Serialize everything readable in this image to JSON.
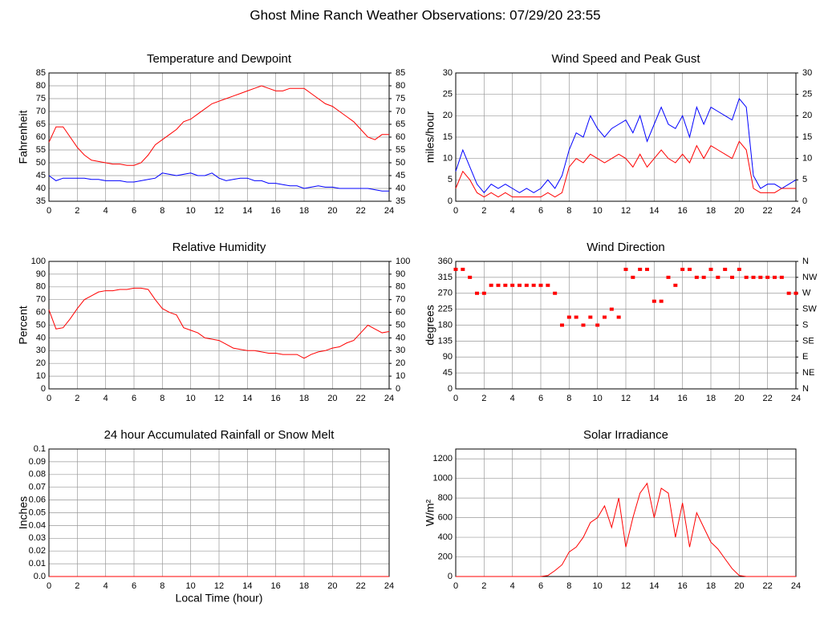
{
  "title": "Ghost Mine Ranch Weather Observations: 07/29/20 23:55",
  "chart_data": [
    {
      "type": "line",
      "title": "Temperature and Dewpoint",
      "ylabel": "Fahrenheit",
      "grid": true,
      "x": [
        0,
        0.5,
        1,
        1.5,
        2,
        2.5,
        3,
        3.5,
        4,
        4.5,
        5,
        5.5,
        6,
        6.5,
        7,
        7.5,
        8,
        8.5,
        9,
        9.5,
        10,
        10.5,
        11,
        11.5,
        12,
        12.5,
        13,
        13.5,
        14,
        14.5,
        15,
        15.5,
        16,
        16.5,
        17,
        17.5,
        18,
        18.5,
        19,
        19.5,
        20,
        20.5,
        21,
        21.5,
        22,
        22.5,
        23,
        23.5,
        24
      ],
      "series": [
        {
          "color": "#ff0000",
          "values": [
            58,
            64,
            64,
            60,
            56,
            53,
            51,
            50.5,
            50,
            49.5,
            49.5,
            49,
            49,
            50,
            53,
            57,
            59,
            61,
            63,
            66,
            67,
            69,
            71,
            73,
            74,
            75,
            76,
            77,
            78,
            79,
            80,
            79,
            78,
            78,
            79,
            79,
            79,
            77,
            75,
            73,
            72,
            70,
            68,
            66,
            63,
            60,
            59,
            61,
            61
          ]
        },
        {
          "color": "#0000ff",
          "values": [
            45,
            43,
            44,
            44,
            44,
            44,
            43.5,
            43.5,
            43,
            43,
            43,
            42.5,
            42.5,
            43,
            43.5,
            44,
            46,
            45.5,
            45,
            45.5,
            46,
            45,
            45,
            46,
            44,
            43,
            43.5,
            44,
            44,
            43,
            43,
            42,
            42,
            41.5,
            41,
            41,
            40,
            40.5,
            41,
            40.5,
            40.5,
            40,
            40,
            40,
            40,
            40,
            39.5,
            39,
            39
          ]
        }
      ],
      "xlim": [
        0,
        24
      ],
      "xticks": [
        0,
        2,
        4,
        6,
        8,
        10,
        12,
        14,
        16,
        18,
        20,
        22,
        24
      ],
      "ylim": [
        35,
        85
      ],
      "yticks": [
        35,
        40,
        45,
        50,
        55,
        60,
        65,
        70,
        75,
        80,
        85
      ],
      "y2lim": [
        35,
        85
      ],
      "y2ticks": [
        35,
        40,
        45,
        50,
        55,
        60,
        65,
        70,
        75,
        80,
        85
      ]
    },
    {
      "type": "line",
      "title": "Wind Speed and Peak Gust",
      "ylabel": "miles/hour",
      "grid": true,
      "x": [
        0,
        0.5,
        1,
        1.5,
        2,
        2.5,
        3,
        3.5,
        4,
        4.5,
        5,
        5.5,
        6,
        6.5,
        7,
        7.5,
        8,
        8.5,
        9,
        9.5,
        10,
        10.5,
        11,
        11.5,
        12,
        12.5,
        13,
        13.5,
        14,
        14.5,
        15,
        15.5,
        16,
        16.5,
        17,
        17.5,
        18,
        18.5,
        19,
        19.5,
        20,
        20.5,
        21,
        21.5,
        22,
        22.5,
        23,
        23.5,
        24
      ],
      "series": [
        {
          "color": "#0000ff",
          "values": [
            7,
            12,
            8,
            4,
            2,
            4,
            3,
            4,
            3,
            2,
            3,
            2,
            3,
            5,
            3,
            6,
            12,
            16,
            15,
            20,
            17,
            15,
            17,
            18,
            19,
            16,
            20,
            14,
            18,
            22,
            18,
            17,
            20,
            15,
            22,
            18,
            22,
            21,
            20,
            19,
            24,
            22,
            6,
            3,
            4,
            4,
            3,
            4,
            5
          ]
        },
        {
          "color": "#ff0000",
          "values": [
            3,
            7,
            5,
            2,
            1,
            2,
            1,
            2,
            1,
            1,
            1,
            1,
            1,
            2,
            1,
            2,
            8,
            10,
            9,
            11,
            10,
            9,
            10,
            11,
            10,
            8,
            11,
            8,
            10,
            12,
            10,
            9,
            11,
            9,
            13,
            10,
            13,
            12,
            11,
            10,
            14,
            12,
            3,
            2,
            2,
            2,
            3,
            3,
            3
          ]
        }
      ],
      "xlim": [
        0,
        24
      ],
      "xticks": [
        0,
        2,
        4,
        6,
        8,
        10,
        12,
        14,
        16,
        18,
        20,
        22,
        24
      ],
      "ylim": [
        0,
        30
      ],
      "yticks": [
        0,
        5,
        10,
        15,
        20,
        25,
        30
      ],
      "y2lim": [
        0,
        30
      ],
      "y2ticks": [
        0,
        5,
        10,
        15,
        20,
        25,
        30
      ]
    },
    {
      "type": "line",
      "title": "Relative Humidity",
      "ylabel": "Percent",
      "grid": true,
      "x": [
        0,
        0.5,
        1,
        1.5,
        2,
        2.5,
        3,
        3.5,
        4,
        4.5,
        5,
        5.5,
        6,
        6.5,
        7,
        7.5,
        8,
        8.5,
        9,
        9.5,
        10,
        10.5,
        11,
        11.5,
        12,
        12.5,
        13,
        13.5,
        14,
        14.5,
        15,
        15.5,
        16,
        16.5,
        17,
        17.5,
        18,
        18.5,
        19,
        19.5,
        20,
        20.5,
        21,
        21.5,
        22,
        22.5,
        23,
        23.5,
        24
      ],
      "series": [
        {
          "color": "#ff0000",
          "values": [
            62,
            47,
            48,
            55,
            63,
            70,
            73,
            76,
            77,
            77,
            78,
            78,
            79,
            79,
            78,
            70,
            63,
            60,
            58,
            48,
            46,
            44,
            40,
            39,
            38,
            35,
            32,
            31,
            30,
            30,
            29,
            28,
            28,
            27,
            27,
            27,
            24,
            27,
            29,
            30,
            32,
            33,
            36,
            38,
            44,
            50,
            47,
            44,
            45
          ]
        }
      ],
      "xlim": [
        0,
        24
      ],
      "xticks": [
        0,
        2,
        4,
        6,
        8,
        10,
        12,
        14,
        16,
        18,
        20,
        22,
        24
      ],
      "ylim": [
        0,
        100
      ],
      "yticks": [
        0,
        10,
        20,
        30,
        40,
        50,
        60,
        70,
        80,
        90,
        100
      ],
      "y2lim": [
        0,
        100
      ],
      "y2ticks": [
        0,
        10,
        20,
        30,
        40,
        50,
        60,
        70,
        80,
        90,
        100
      ]
    },
    {
      "type": "scatter",
      "title": "Wind Direction",
      "ylabel": "degrees",
      "grid": true,
      "x": [
        0,
        0.5,
        1,
        1.5,
        2,
        2.5,
        3,
        3.5,
        4,
        4.5,
        5,
        5.5,
        6,
        6.5,
        7,
        7.5,
        8,
        8.5,
        9,
        9.5,
        10,
        10.5,
        11,
        11.5,
        12,
        12.5,
        13,
        13.5,
        14,
        14.5,
        15,
        15.5,
        16,
        16.5,
        17,
        17.5,
        18,
        18.5,
        19,
        19.5,
        20,
        20.5,
        21,
        21.5,
        22,
        22.5,
        23,
        23.5,
        24
      ],
      "series": [
        {
          "color": "#ff0000",
          "values": [
            337.5,
            337.5,
            315,
            270,
            270,
            292.5,
            292.5,
            292.5,
            292.5,
            292.5,
            292.5,
            292.5,
            292.5,
            292.5,
            270,
            180,
            202.5,
            202.5,
            180,
            202.5,
            180,
            202.5,
            225,
            202.5,
            337.5,
            315,
            337.5,
            337.5,
            247.5,
            247.5,
            315,
            292.5,
            337.5,
            337.5,
            315,
            315,
            337.5,
            315,
            337.5,
            315,
            337.5,
            315,
            315,
            315,
            315,
            315,
            315,
            270,
            270
          ]
        }
      ],
      "xlim": [
        0,
        24
      ],
      "xticks": [
        0,
        2,
        4,
        6,
        8,
        10,
        12,
        14,
        16,
        18,
        20,
        22,
        24
      ],
      "ylim": [
        0,
        360
      ],
      "yticks": [
        0,
        45,
        90,
        135,
        180,
        225,
        270,
        315,
        360
      ],
      "y2lim": [
        0,
        360
      ],
      "y2ticks": [
        {
          "value": 0,
          "label": "N"
        },
        {
          "value": 45,
          "label": "NE"
        },
        {
          "value": 90,
          "label": "E"
        },
        {
          "value": 135,
          "label": "SE"
        },
        {
          "value": 180,
          "label": "S"
        },
        {
          "value": 225,
          "label": "SW"
        },
        {
          "value": 270,
          "label": "W"
        },
        {
          "value": 315,
          "label": "NW"
        },
        {
          "value": 360,
          "label": "N"
        }
      ]
    },
    {
      "type": "line",
      "title": "24 hour Accumulated Rainfall or Snow Melt",
      "ylabel": "Inches",
      "xlabel": "Local Time (hour)",
      "grid": true,
      "x": [
        0,
        24
      ],
      "series": [
        {
          "color": "#ff0000",
          "values": [
            0,
            0
          ]
        }
      ],
      "xlim": [
        0,
        24
      ],
      "xticks": [
        0,
        2,
        4,
        6,
        8,
        10,
        12,
        14,
        16,
        18,
        20,
        22,
        24
      ],
      "ylim": [
        0,
        0.1
      ],
      "yticks": [
        {
          "value": 0,
          "label": "0.0"
        },
        0.01,
        0.02,
        0.03,
        0.04,
        0.05,
        0.06,
        0.07,
        0.08,
        0.09,
        0.1
      ]
    },
    {
      "type": "line",
      "title": "Solar Irradiance",
      "ylabel": "W/m²",
      "grid": true,
      "x": [
        0,
        0.5,
        1,
        1.5,
        2,
        2.5,
        3,
        3.5,
        4,
        4.5,
        5,
        5.5,
        6,
        6.5,
        7,
        7.5,
        8,
        8.5,
        9,
        9.5,
        10,
        10.5,
        11,
        11.5,
        12,
        12.5,
        13,
        13.5,
        14,
        14.5,
        15,
        15.5,
        16,
        16.5,
        17,
        17.5,
        18,
        18.5,
        19,
        19.5,
        20,
        20.5,
        21,
        21.5,
        22,
        22.5,
        23,
        23.5,
        24
      ],
      "series": [
        {
          "color": "#ff0000",
          "values": [
            0,
            0,
            0,
            0,
            0,
            0,
            0,
            0,
            0,
            0,
            0,
            0,
            0,
            10,
            60,
            120,
            250,
            300,
            400,
            550,
            600,
            720,
            500,
            800,
            300,
            600,
            850,
            950,
            600,
            900,
            850,
            400,
            750,
            300,
            650,
            500,
            350,
            280,
            180,
            80,
            10,
            0,
            0,
            0,
            0,
            0,
            0,
            0,
            0
          ]
        }
      ],
      "xlim": [
        0,
        24
      ],
      "xticks": [
        0,
        2,
        4,
        6,
        8,
        10,
        12,
        14,
        16,
        18,
        20,
        22,
        24
      ],
      "ylim": [
        0,
        1300
      ],
      "yticks": [
        0,
        200,
        400,
        600,
        800,
        1000,
        1200
      ]
    }
  ]
}
